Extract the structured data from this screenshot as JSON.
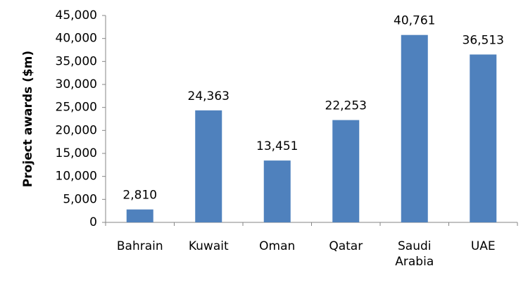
{
  "chart_data": {
    "type": "bar",
    "y_label": "Project awards ($m)",
    "categories": [
      "Bahrain",
      "Kuwait",
      "Oman",
      "Qatar",
      "Saudi Arabia",
      "UAE"
    ],
    "values": [
      2810,
      24363,
      13451,
      22253,
      40761,
      36513
    ],
    "value_labels": [
      "2,810",
      "24,363",
      "13,451",
      "22,253",
      "40,761",
      "36,513"
    ],
    "color": "#4f81bd",
    "ylim": [
      0,
      45000
    ],
    "yticks": [
      0,
      {
        "value": 5000,
        "label": "5,000"
      },
      {
        "value": 10000,
        "label": "10,000"
      },
      {
        "value": 15000,
        "label": "15,000"
      },
      {
        "value": 20000,
        "label": "20,000"
      },
      {
        "value": 25000,
        "label": "25,000"
      },
      {
        "value": 30000,
        "label": "30,000"
      },
      {
        "value": 35000,
        "label": "35,000"
      },
      {
        "value": 40000,
        "label": "40,000"
      },
      {
        "value": 45000,
        "label": "45,000"
      }
    ],
    "grid": false
  }
}
